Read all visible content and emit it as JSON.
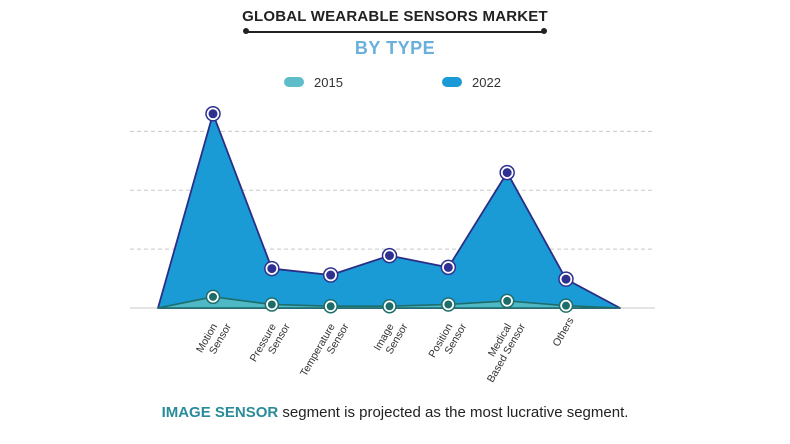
{
  "chart_data": {
    "type": "area",
    "title": "GLOBAL WEARABLE SENSORS MARKET",
    "subtitle": "BY TYPE",
    "categories": [
      "Motion Sensor",
      "Pressure Sensor",
      "Temperature Sensor",
      "Image Sensor",
      "Position Sensor",
      "Medical Based Sensor",
      "Others"
    ],
    "series": [
      {
        "name": "2015",
        "values": [
          0.19,
          0.06,
          0.03,
          0.03,
          0.06,
          0.12,
          0.04
        ],
        "color": "#4fb8c6"
      },
      {
        "name": "2022",
        "values": [
          3.3,
          0.67,
          0.56,
          0.89,
          0.69,
          2.3,
          0.49
        ],
        "color": "#1a9bd6"
      }
    ],
    "ylim": [
      0,
      3.5
    ],
    "grid": true,
    "legend_position": "top"
  },
  "footer": {
    "highlight": "IMAGE SENSOR",
    "rest": " segment is projected as the most lucrative segment."
  },
  "colors": {
    "line_2022": "#2a2e86",
    "line_2015": "#1d6e6a",
    "marker_2022": "#2e3190",
    "marker_2015": "#1d6e6a",
    "grid": "#c8c8c8"
  }
}
